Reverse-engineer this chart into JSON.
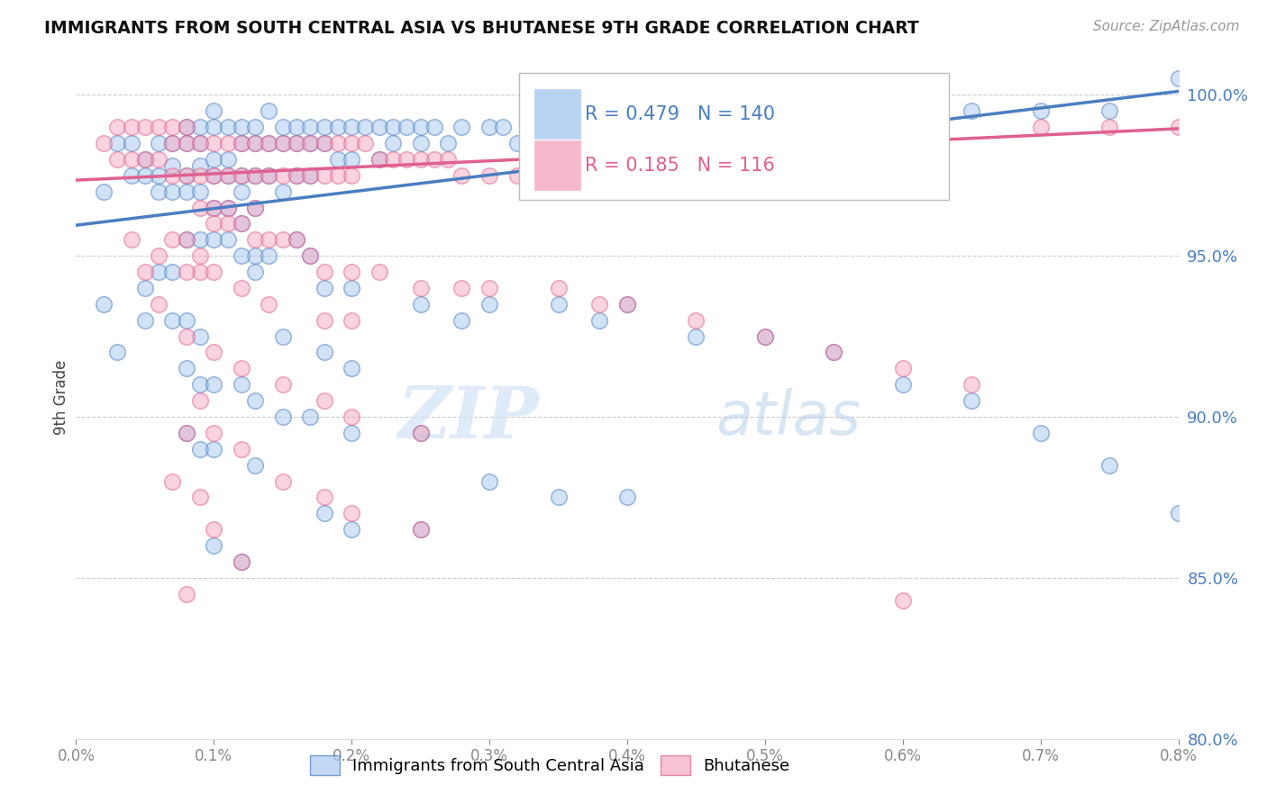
{
  "title": "IMMIGRANTS FROM SOUTH CENTRAL ASIA VS BHUTANESE 9TH GRADE CORRELATION CHART",
  "source_text": "Source: ZipAtlas.com",
  "ylabel": "9th Grade",
  "xlim": [
    0.0,
    0.008
  ],
  "ylim": [
    0.828,
    1.012
  ],
  "y_tick_labels": [
    "80.0%",
    "85.0%",
    "90.0%",
    "95.0%",
    "100.0%"
  ],
  "y_tick_positions": [
    0.8,
    0.85,
    0.9,
    0.95,
    1.0
  ],
  "blue_color": "#a8c8f0",
  "pink_color": "#f4a8c0",
  "blue_line_color": "#4a7ec0",
  "pink_line_color": "#e06090",
  "r_blue": "0.479",
  "n_blue": "140",
  "r_pink": "0.185",
  "n_pink": "116",
  "watermark_zip": "ZIP",
  "watermark_atlas": "atlas",
  "blue_intercept": 0.9595,
  "blue_slope": 5.2,
  "pink_intercept": 0.9735,
  "pink_slope": 2.0,
  "blue_scatter": [
    [
      0.0002,
      0.97
    ],
    [
      0.0003,
      0.985
    ],
    [
      0.0004,
      0.985
    ],
    [
      0.0004,
      0.975
    ],
    [
      0.0005,
      0.98
    ],
    [
      0.0005,
      0.975
    ],
    [
      0.0006,
      0.985
    ],
    [
      0.0006,
      0.975
    ],
    [
      0.0006,
      0.97
    ],
    [
      0.0007,
      0.985
    ],
    [
      0.0007,
      0.978
    ],
    [
      0.0007,
      0.97
    ],
    [
      0.0008,
      0.99
    ],
    [
      0.0008,
      0.985
    ],
    [
      0.0008,
      0.975
    ],
    [
      0.0008,
      0.97
    ],
    [
      0.0009,
      0.99
    ],
    [
      0.0009,
      0.985
    ],
    [
      0.0009,
      0.978
    ],
    [
      0.0009,
      0.97
    ],
    [
      0.001,
      0.995
    ],
    [
      0.001,
      0.99
    ],
    [
      0.001,
      0.98
    ],
    [
      0.001,
      0.975
    ],
    [
      0.001,
      0.965
    ],
    [
      0.0011,
      0.99
    ],
    [
      0.0011,
      0.98
    ],
    [
      0.0011,
      0.975
    ],
    [
      0.0011,
      0.965
    ],
    [
      0.0012,
      0.99
    ],
    [
      0.0012,
      0.985
    ],
    [
      0.0012,
      0.975
    ],
    [
      0.0012,
      0.97
    ],
    [
      0.0012,
      0.96
    ],
    [
      0.0013,
      0.99
    ],
    [
      0.0013,
      0.985
    ],
    [
      0.0013,
      0.975
    ],
    [
      0.0013,
      0.965
    ],
    [
      0.0014,
      0.995
    ],
    [
      0.0014,
      0.985
    ],
    [
      0.0014,
      0.975
    ],
    [
      0.0015,
      0.99
    ],
    [
      0.0015,
      0.985
    ],
    [
      0.0015,
      0.97
    ],
    [
      0.0016,
      0.99
    ],
    [
      0.0016,
      0.985
    ],
    [
      0.0016,
      0.975
    ],
    [
      0.0017,
      0.99
    ],
    [
      0.0017,
      0.985
    ],
    [
      0.0017,
      0.975
    ],
    [
      0.0018,
      0.99
    ],
    [
      0.0018,
      0.985
    ],
    [
      0.0019,
      0.99
    ],
    [
      0.0019,
      0.98
    ],
    [
      0.002,
      0.99
    ],
    [
      0.002,
      0.98
    ],
    [
      0.0021,
      0.99
    ],
    [
      0.0022,
      0.99
    ],
    [
      0.0022,
      0.98
    ],
    [
      0.0023,
      0.99
    ],
    [
      0.0023,
      0.985
    ],
    [
      0.0024,
      0.99
    ],
    [
      0.0025,
      0.99
    ],
    [
      0.0025,
      0.985
    ],
    [
      0.0026,
      0.99
    ],
    [
      0.0027,
      0.985
    ],
    [
      0.0028,
      0.99
    ],
    [
      0.003,
      0.99
    ],
    [
      0.0031,
      0.99
    ],
    [
      0.0032,
      0.985
    ],
    [
      0.0033,
      0.99
    ],
    [
      0.0035,
      0.99
    ],
    [
      0.0036,
      0.985
    ],
    [
      0.0038,
      0.99
    ],
    [
      0.004,
      0.99
    ],
    [
      0.0042,
      0.99
    ],
    [
      0.0013,
      0.95
    ],
    [
      0.0013,
      0.945
    ],
    [
      0.0014,
      0.95
    ],
    [
      0.0016,
      0.955
    ],
    [
      0.0017,
      0.95
    ],
    [
      0.0008,
      0.955
    ],
    [
      0.0009,
      0.955
    ],
    [
      0.001,
      0.955
    ],
    [
      0.0011,
      0.955
    ],
    [
      0.0012,
      0.95
    ],
    [
      0.0005,
      0.94
    ],
    [
      0.0006,
      0.945
    ],
    [
      0.0007,
      0.945
    ],
    [
      0.0025,
      0.935
    ],
    [
      0.0028,
      0.93
    ],
    [
      0.0018,
      0.94
    ],
    [
      0.003,
      0.935
    ],
    [
      0.002,
      0.94
    ],
    [
      0.0035,
      0.935
    ],
    [
      0.0038,
      0.93
    ],
    [
      0.004,
      0.935
    ],
    [
      0.0007,
      0.93
    ],
    [
      0.0008,
      0.93
    ],
    [
      0.0009,
      0.925
    ],
    [
      0.0015,
      0.925
    ],
    [
      0.0018,
      0.92
    ],
    [
      0.0008,
      0.915
    ],
    [
      0.0009,
      0.91
    ],
    [
      0.001,
      0.91
    ],
    [
      0.0012,
      0.91
    ],
    [
      0.0013,
      0.905
    ],
    [
      0.0015,
      0.9
    ],
    [
      0.0017,
      0.9
    ],
    [
      0.002,
      0.895
    ],
    [
      0.0025,
      0.895
    ],
    [
      0.0008,
      0.895
    ],
    [
      0.0009,
      0.89
    ],
    [
      0.001,
      0.89
    ],
    [
      0.0013,
      0.885
    ],
    [
      0.003,
      0.88
    ],
    [
      0.0035,
      0.875
    ],
    [
      0.004,
      0.875
    ],
    [
      0.0018,
      0.87
    ],
    [
      0.002,
      0.865
    ],
    [
      0.0025,
      0.865
    ],
    [
      0.001,
      0.86
    ],
    [
      0.0012,
      0.855
    ],
    [
      0.0005,
      0.93
    ],
    [
      0.0003,
      0.92
    ],
    [
      0.0002,
      0.935
    ],
    [
      0.0045,
      0.925
    ],
    [
      0.005,
      0.925
    ],
    [
      0.0055,
      0.92
    ],
    [
      0.002,
      0.915
    ],
    [
      0.006,
      0.91
    ],
    [
      0.0065,
      0.905
    ],
    [
      0.007,
      0.895
    ],
    [
      0.0075,
      0.885
    ],
    [
      0.008,
      0.87
    ],
    [
      0.0045,
      0.99
    ],
    [
      0.005,
      0.995
    ],
    [
      0.0055,
      0.995
    ],
    [
      0.006,
      0.995
    ],
    [
      0.0065,
      0.995
    ],
    [
      0.007,
      0.995
    ],
    [
      0.0075,
      0.995
    ],
    [
      0.008,
      1.005
    ]
  ],
  "pink_scatter": [
    [
      0.0002,
      0.985
    ],
    [
      0.0003,
      0.99
    ],
    [
      0.0003,
      0.98
    ],
    [
      0.0004,
      0.99
    ],
    [
      0.0004,
      0.98
    ],
    [
      0.0005,
      0.99
    ],
    [
      0.0005,
      0.98
    ],
    [
      0.0006,
      0.99
    ],
    [
      0.0006,
      0.98
    ],
    [
      0.0007,
      0.99
    ],
    [
      0.0007,
      0.985
    ],
    [
      0.0007,
      0.975
    ],
    [
      0.0008,
      0.99
    ],
    [
      0.0008,
      0.985
    ],
    [
      0.0008,
      0.975
    ],
    [
      0.0009,
      0.985
    ],
    [
      0.0009,
      0.975
    ],
    [
      0.0009,
      0.965
    ],
    [
      0.001,
      0.985
    ],
    [
      0.001,
      0.975
    ],
    [
      0.001,
      0.965
    ],
    [
      0.0011,
      0.985
    ],
    [
      0.0011,
      0.975
    ],
    [
      0.0011,
      0.965
    ],
    [
      0.0012,
      0.985
    ],
    [
      0.0012,
      0.975
    ],
    [
      0.0013,
      0.985
    ],
    [
      0.0013,
      0.975
    ],
    [
      0.0013,
      0.965
    ],
    [
      0.0014,
      0.985
    ],
    [
      0.0014,
      0.975
    ],
    [
      0.0015,
      0.985
    ],
    [
      0.0015,
      0.975
    ],
    [
      0.0016,
      0.985
    ],
    [
      0.0016,
      0.975
    ],
    [
      0.0017,
      0.985
    ],
    [
      0.0017,
      0.975
    ],
    [
      0.0018,
      0.985
    ],
    [
      0.0018,
      0.975
    ],
    [
      0.0019,
      0.985
    ],
    [
      0.0019,
      0.975
    ],
    [
      0.002,
      0.985
    ],
    [
      0.002,
      0.975
    ],
    [
      0.0021,
      0.985
    ],
    [
      0.0022,
      0.98
    ],
    [
      0.0023,
      0.98
    ],
    [
      0.0024,
      0.98
    ],
    [
      0.0025,
      0.98
    ],
    [
      0.0026,
      0.98
    ],
    [
      0.0027,
      0.98
    ],
    [
      0.0028,
      0.975
    ],
    [
      0.003,
      0.975
    ],
    [
      0.0032,
      0.975
    ],
    [
      0.0033,
      0.975
    ],
    [
      0.001,
      0.96
    ],
    [
      0.0011,
      0.96
    ],
    [
      0.0012,
      0.96
    ],
    [
      0.0013,
      0.955
    ],
    [
      0.0014,
      0.955
    ],
    [
      0.0015,
      0.955
    ],
    [
      0.0016,
      0.955
    ],
    [
      0.0007,
      0.955
    ],
    [
      0.0008,
      0.955
    ],
    [
      0.0009,
      0.95
    ],
    [
      0.0017,
      0.95
    ],
    [
      0.0018,
      0.945
    ],
    [
      0.002,
      0.945
    ],
    [
      0.0022,
      0.945
    ],
    [
      0.0025,
      0.94
    ],
    [
      0.0028,
      0.94
    ],
    [
      0.0009,
      0.945
    ],
    [
      0.0006,
      0.95
    ],
    [
      0.0005,
      0.945
    ],
    [
      0.0004,
      0.955
    ],
    [
      0.0008,
      0.945
    ],
    [
      0.001,
      0.945
    ],
    [
      0.003,
      0.94
    ],
    [
      0.0012,
      0.94
    ],
    [
      0.0035,
      0.94
    ],
    [
      0.0014,
      0.935
    ],
    [
      0.0038,
      0.935
    ],
    [
      0.004,
      0.935
    ],
    [
      0.0018,
      0.93
    ],
    [
      0.002,
      0.93
    ],
    [
      0.0006,
      0.935
    ],
    [
      0.0008,
      0.925
    ],
    [
      0.001,
      0.92
    ],
    [
      0.0012,
      0.915
    ],
    [
      0.0015,
      0.91
    ],
    [
      0.0018,
      0.905
    ],
    [
      0.002,
      0.9
    ],
    [
      0.0009,
      0.905
    ],
    [
      0.001,
      0.895
    ],
    [
      0.0025,
      0.895
    ],
    [
      0.0008,
      0.895
    ],
    [
      0.0012,
      0.89
    ],
    [
      0.0007,
      0.88
    ],
    [
      0.0015,
      0.88
    ],
    [
      0.0009,
      0.875
    ],
    [
      0.0018,
      0.875
    ],
    [
      0.002,
      0.87
    ],
    [
      0.001,
      0.865
    ],
    [
      0.0025,
      0.865
    ],
    [
      0.0012,
      0.855
    ],
    [
      0.0008,
      0.845
    ],
    [
      0.0045,
      0.93
    ],
    [
      0.005,
      0.925
    ],
    [
      0.0055,
      0.92
    ],
    [
      0.006,
      0.915
    ],
    [
      0.0065,
      0.91
    ],
    [
      0.006,
      0.843
    ],
    [
      0.007,
      0.99
    ],
    [
      0.0075,
      0.99
    ],
    [
      0.008,
      0.99
    ]
  ]
}
